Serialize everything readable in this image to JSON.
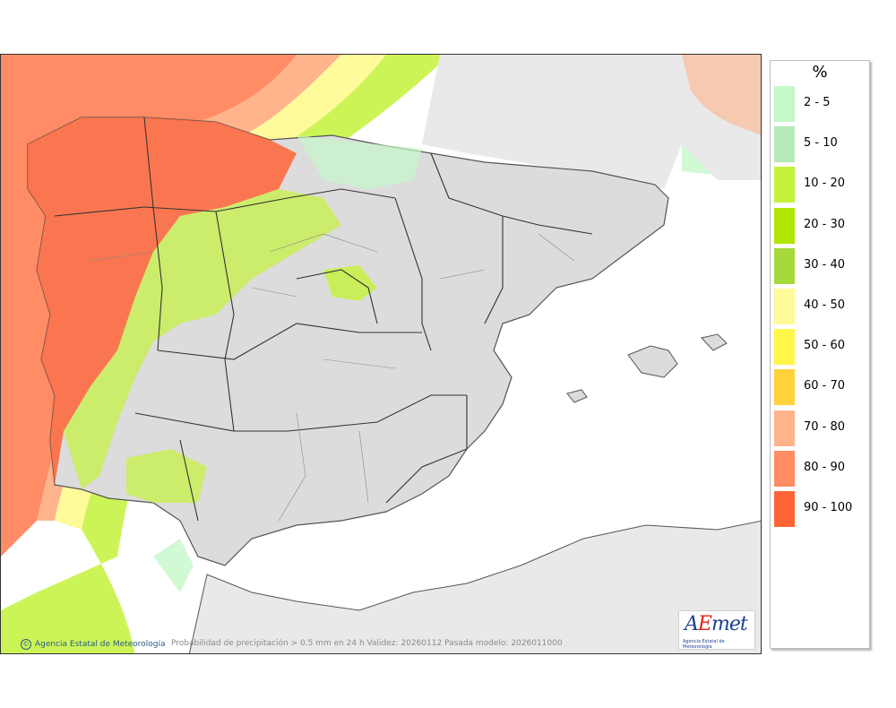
{
  "map": {
    "credit": "Agencia Estatal de Meteorología",
    "caption": "Probabilidad de precipitación > 0.5 mm en 24 h Validez: 20260112 Pasada modelo: 2026011000",
    "logo": {
      "word_prefix": "A",
      "word_accent": "E",
      "word_suffix": "met",
      "subtitle": "Agencia Estatal de Meteorología"
    }
  },
  "legend": {
    "title": "%",
    "items": [
      {
        "label": "2 - 5",
        "color": "#c5f7c9"
      },
      {
        "label": "5 - 10",
        "color": "#b6e9b8"
      },
      {
        "label": "10 - 20",
        "color": "#c4f23a"
      },
      {
        "label": "20 - 30",
        "color": "#b0e600"
      },
      {
        "label": "30 - 40",
        "color": "#a5d93c"
      },
      {
        "label": "40 - 50",
        "color": "#fffa9a"
      },
      {
        "label": "50 - 60",
        "color": "#fff64a"
      },
      {
        "label": "60 - 70",
        "color": "#ffd23c"
      },
      {
        "label": "70 - 80",
        "color": "#ffb48c"
      },
      {
        "label": "80 - 90",
        "color": "#ff8c64"
      },
      {
        "label": "90 - 100",
        "color": "#ff6437"
      }
    ]
  },
  "colors": {
    "sea": "#ffffff",
    "land": "#dedede",
    "other_land": "#e9e9e9",
    "border": "#333333"
  }
}
